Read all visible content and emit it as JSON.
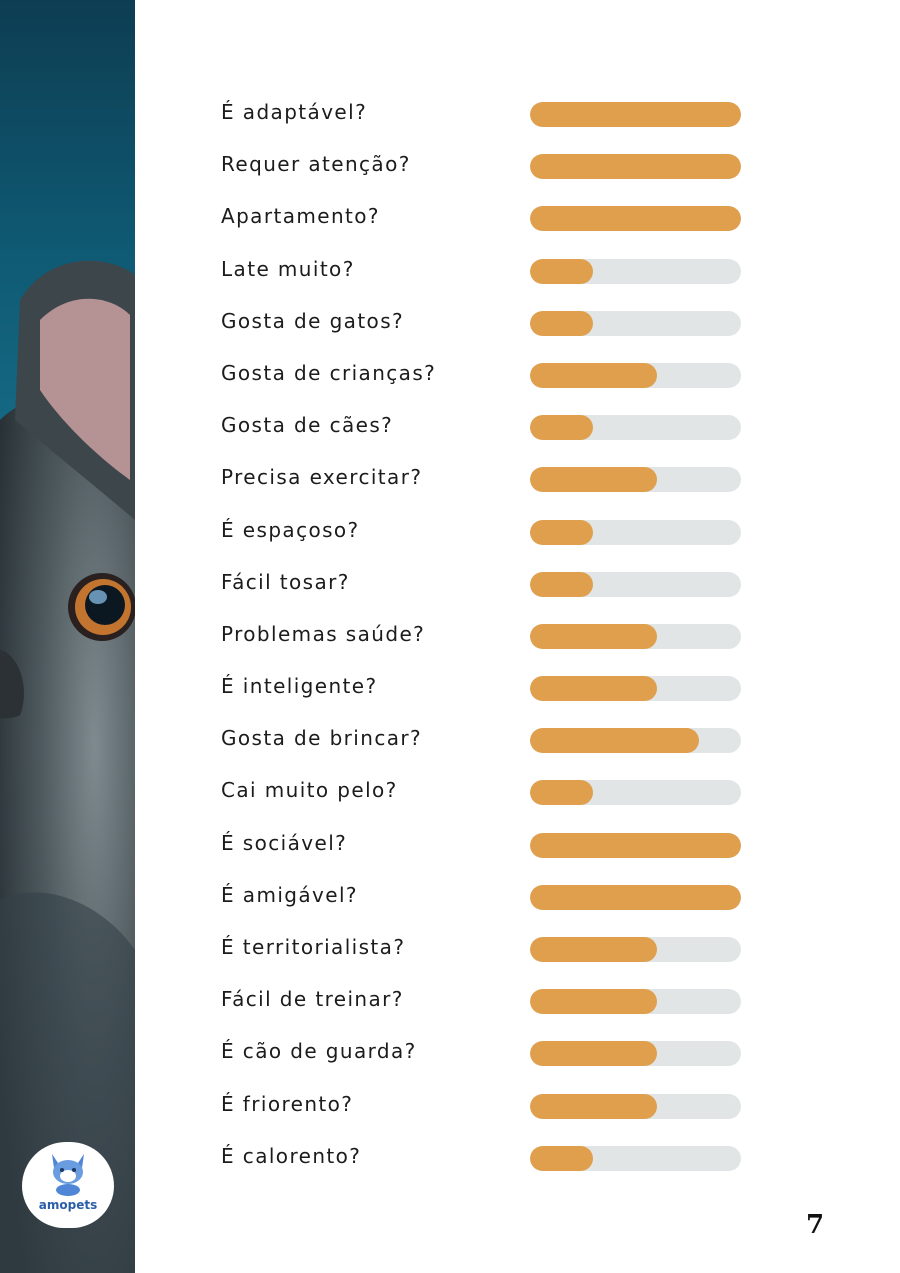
{
  "brand": {
    "name": "amopets"
  },
  "page": {
    "number": "7"
  },
  "colors": {
    "bar_fill": "#e09f4c",
    "bar_track": "#e1e5e6",
    "photo_bg": "#0f5a74"
  },
  "traits": [
    {
      "label": "É adaptável?",
      "level": 1.0
    },
    {
      "label": "Requer atenção?",
      "level": 1.0
    },
    {
      "label": "Apartamento?",
      "level": 1.0
    },
    {
      "label": "Late muito?",
      "level": 0.3
    },
    {
      "label": "Gosta de gatos?",
      "level": 0.3
    },
    {
      "label": "Gosta de crianças?",
      "level": 0.6
    },
    {
      "label": "Gosta de cães?",
      "level": 0.3
    },
    {
      "label": "Precisa exercitar?",
      "level": 0.6
    },
    {
      "label": "É espaçoso?",
      "level": 0.3
    },
    {
      "label": "Fácil tosar?",
      "level": 0.3
    },
    {
      "label": "Problemas saúde?",
      "level": 0.6
    },
    {
      "label": "É inteligente?",
      "level": 0.6
    },
    {
      "label": "Gosta de brincar?",
      "level": 0.8
    },
    {
      "label": "Cai muito pelo?",
      "level": 0.3
    },
    {
      "label": "É sociável?",
      "level": 1.0
    },
    {
      "label": "É amigável?",
      "level": 1.0
    },
    {
      "label": "É territorialista?",
      "level": 0.6
    },
    {
      "label": "Fácil de treinar?",
      "level": 0.6
    },
    {
      "label": "É cão de guarda?",
      "level": 0.6
    },
    {
      "label": "É friorento?",
      "level": 0.6
    },
    {
      "label": "É calorento?",
      "level": 0.3
    }
  ]
}
